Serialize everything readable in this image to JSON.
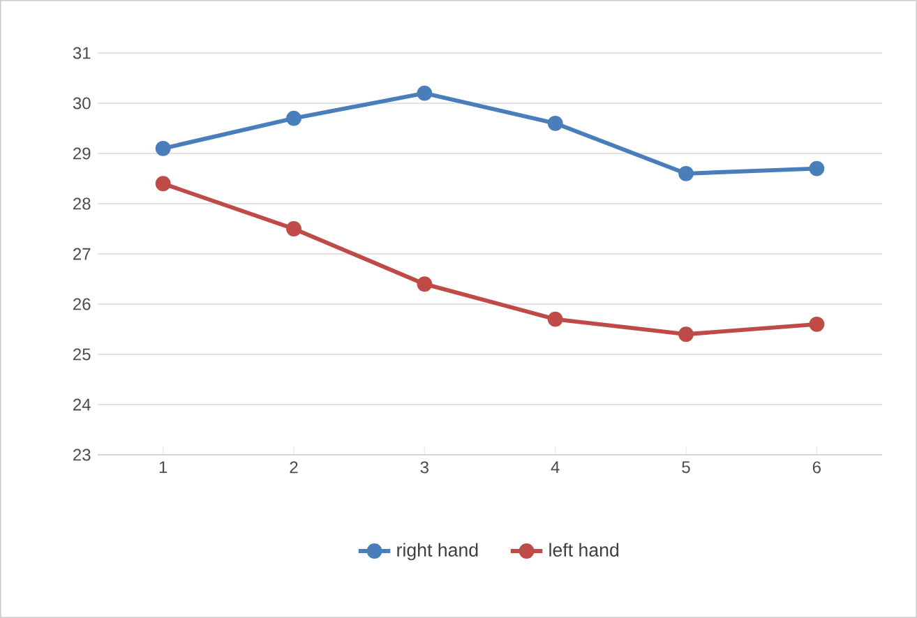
{
  "chart_data": {
    "type": "line",
    "categories": [
      "1",
      "2",
      "3",
      "4",
      "5",
      "6"
    ],
    "series": [
      {
        "name": "right hand",
        "color": "#4a7ebb",
        "values": [
          29.1,
          29.7,
          30.2,
          29.6,
          28.6,
          28.7
        ]
      },
      {
        "name": "left hand",
        "color": "#be4b48",
        "values": [
          28.4,
          27.5,
          26.4,
          25.7,
          25.4,
          25.6
        ]
      }
    ],
    "ylim": [
      23,
      31
    ],
    "yticks": [
      23,
      24,
      25,
      26,
      27,
      28,
      29,
      30,
      31
    ],
    "grid": "y",
    "legend": "bottom",
    "marker": "circle",
    "line_style": "solid"
  }
}
